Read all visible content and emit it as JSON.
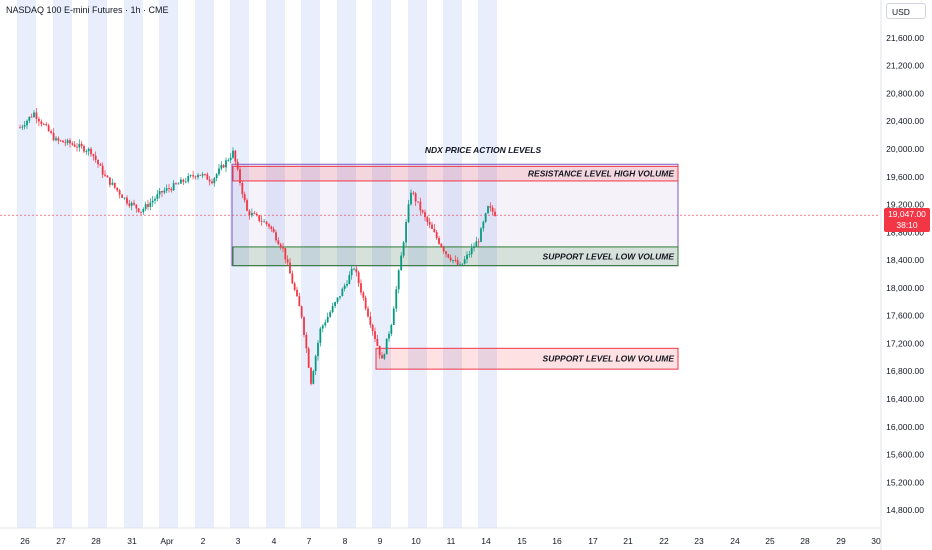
{
  "header": {
    "title": "NASDAQ 100 E-mini Futures · 1h · CME",
    "currency_button": "USD"
  },
  "price_tag": {
    "price": "19,047.00",
    "countdown": "38:10"
  },
  "colors": {
    "up": "#089981",
    "down": "#f23645",
    "session_band": "#e8eefc",
    "resistance": "#f23645",
    "support": "#2e7d32",
    "range_box": "#7e57c2"
  },
  "chart_data": {
    "type": "candlestick",
    "title": "NDX PRICE ACTION LEVELS",
    "yaxis": {
      "ticks": [
        "21,600.00",
        "21,200.00",
        "20,800.00",
        "20,400.00",
        "20,000.00",
        "19,600.00",
        "19,200.00",
        "18,800.00",
        "18,400.00",
        "18,000.00",
        "17,600.00",
        "17,200.00",
        "16,800.00",
        "16,400.00",
        "16,000.00",
        "15,600.00",
        "15,200.00",
        "14,800.00"
      ],
      "range": [
        14600,
        21900
      ]
    },
    "xaxis": {
      "ticks": [
        "26",
        "27",
        "28",
        "31",
        "Apr",
        "2",
        "3",
        "4",
        "7",
        "8",
        "9",
        "10",
        "11",
        "14",
        "15",
        "16",
        "17",
        "21",
        "22",
        "23",
        "24",
        "25",
        "28",
        "29",
        "30"
      ]
    },
    "last_price": 19047,
    "close_path": [
      [
        "26",
        20310
      ],
      [
        "26",
        20520
      ],
      [
        "27",
        20120
      ],
      [
        "27",
        20080
      ],
      [
        "28",
        19970
      ],
      [
        "28",
        19600
      ],
      [
        "31",
        19250
      ],
      [
        "31",
        19110
      ],
      [
        "Apr",
        19380
      ],
      [
        "Apr",
        19480
      ],
      [
        "2",
        19650
      ],
      [
        "2",
        19550
      ],
      [
        "3",
        19950
      ],
      [
        "3",
        19100
      ],
      [
        "4",
        18900
      ],
      [
        "4",
        18560
      ],
      [
        "7",
        17600
      ],
      [
        "7",
        16650
      ],
      [
        "7",
        17400
      ],
      [
        "8",
        17900
      ],
      [
        "8",
        18300
      ],
      [
        "9",
        17400
      ],
      [
        "9",
        16950
      ],
      [
        "9",
        17500
      ],
      [
        "10",
        19400
      ],
      [
        "10",
        19000
      ],
      [
        "11",
        18500
      ],
      [
        "11",
        18300
      ],
      [
        "14",
        18700
      ],
      [
        "14",
        19150
      ],
      [
        "14",
        19047
      ]
    ],
    "zones": [
      {
        "label": "RESISTANCE LEVEL HIGH VOLUME",
        "top": 19750,
        "bottom": 19540,
        "from": "3",
        "to": "22",
        "kind": "resistance"
      },
      {
        "label": "SUPPORT LEVEL LOW VOLUME",
        "top": 18590,
        "bottom": 18320,
        "from": "3",
        "to": "22",
        "kind": "support"
      },
      {
        "label": "SUPPORT LEVEL LOW VOLUME",
        "top": 17130,
        "bottom": 16830,
        "from": "9",
        "to": "22",
        "kind": "support-alt"
      }
    ],
    "range_box": {
      "top": 19780,
      "bottom": 18320,
      "from": "3",
      "to": "22"
    }
  }
}
